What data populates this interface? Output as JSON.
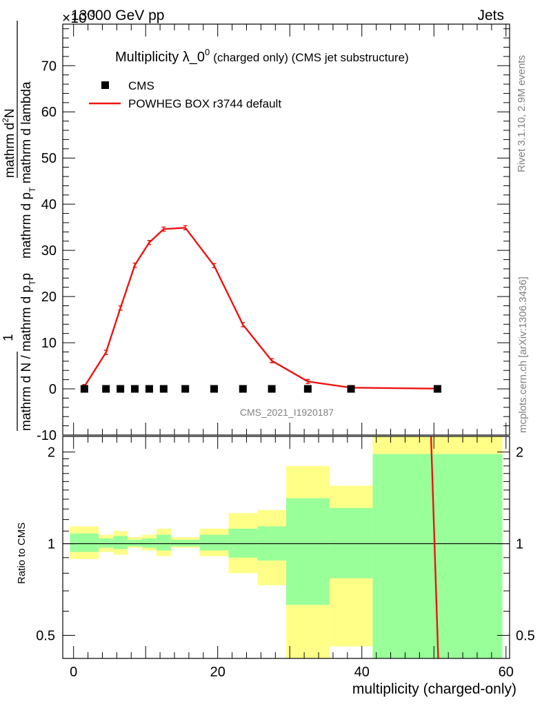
{
  "header": {
    "left": "13000 GeV pp",
    "right": "Jets",
    "exponent": "×10",
    "exponent_power": "-3"
  },
  "side_texts": {
    "rivet": "Rivet 3.1.10,  2.9M events",
    "mcplots": "mcplots.cern.ch [arXiv:1306.3436]"
  },
  "main_ylabel": {
    "numerator_top": "mathrm d",
    "numerator_sup": "2",
    "numerator_rest": "N",
    "denominator_1": "mathrm d p",
    "denominator_1_sub": "T",
    "denominator_2": " mathrm d lambda",
    "outer_one": "1",
    "outer_den_a": "mathrm d N / mathrm d p",
    "outer_den_a_sub": "T",
    "outer_den_b": "p"
  },
  "ratio_ylabel": "Ratio to CMS",
  "xlabel": "multiplicity (charged-only)",
  "watermark": "CMS_2021_I1920187",
  "chart_data": [
    {
      "type": "line",
      "title": "Multiplicity λ_0",
      "title_sup": "0",
      "subtitle": "(charged only) (CMS jet substructure)",
      "xlim": [
        -1.5,
        60.5
      ],
      "ylim": [
        -10,
        79
      ],
      "yticks": [
        -10,
        0,
        10,
        20,
        30,
        40,
        50,
        60,
        70
      ],
      "legend_position": "top-left",
      "legend": [
        "CMS",
        "POWHEG BOX r3744 default"
      ],
      "series": [
        {
          "name": "CMS",
          "style": "markers",
          "color": "#000000",
          "x": [
            1.5,
            4.5,
            6.5,
            8.5,
            10.5,
            12.5,
            15.5,
            19.5,
            23.5,
            27.5,
            32.5,
            38.5,
            50.5
          ],
          "values": [
            0,
            0,
            0,
            0,
            0,
            0,
            0,
            0,
            0,
            0,
            0,
            0,
            0
          ]
        },
        {
          "name": "POWHEG BOX r3744 default",
          "style": "line",
          "color": "#ee1111",
          "x": [
            1.5,
            4.5,
            6.5,
            8.5,
            10.5,
            12.5,
            15.5,
            19.5,
            23.5,
            27.5,
            32.5,
            38.5,
            50.5
          ],
          "values": [
            0.5,
            7.9,
            17.5,
            26.8,
            31.7,
            34.6,
            34.9,
            26.7,
            13.9,
            6.1,
            1.6,
            0.25,
            0.05
          ]
        }
      ]
    },
    {
      "type": "area",
      "title": "Ratio to CMS",
      "xlabel": "multiplicity (charged-only)",
      "xlim": [
        -1.5,
        60.5
      ],
      "xticks": [
        0,
        20,
        40,
        60
      ],
      "ylim": [
        0.42,
        2.25
      ],
      "yscale": "log",
      "yticks": [
        0.5,
        1,
        2
      ],
      "bins": [
        {
          "lo": -0.5,
          "hi": 3.5,
          "inner": [
            0.94,
            1.08
          ],
          "outer": [
            0.89,
            1.14
          ]
        },
        {
          "lo": 3.5,
          "hi": 5.5,
          "inner": [
            0.97,
            1.04
          ],
          "outer": [
            0.94,
            1.07
          ]
        },
        {
          "lo": 5.5,
          "hi": 7.5,
          "inner": [
            0.96,
            1.06
          ],
          "outer": [
            0.92,
            1.1
          ]
        },
        {
          "lo": 7.5,
          "hi": 9.5,
          "inner": [
            0.98,
            1.03
          ],
          "outer": [
            0.97,
            1.05
          ]
        },
        {
          "lo": 9.5,
          "hi": 11.5,
          "inner": [
            0.97,
            1.04
          ],
          "outer": [
            0.95,
            1.07
          ]
        },
        {
          "lo": 11.5,
          "hi": 13.5,
          "inner": [
            0.95,
            1.07
          ],
          "outer": [
            0.91,
            1.12
          ]
        },
        {
          "lo": 13.5,
          "hi": 17.5,
          "inner": [
            0.98,
            1.03
          ],
          "outer": [
            0.97,
            1.05
          ]
        },
        {
          "lo": 17.5,
          "hi": 21.5,
          "inner": [
            0.95,
            1.07
          ],
          "outer": [
            0.91,
            1.12
          ]
        },
        {
          "lo": 21.5,
          "hi": 25.5,
          "inner": [
            0.9,
            1.12
          ],
          "outer": [
            0.8,
            1.26
          ]
        },
        {
          "lo": 25.5,
          "hi": 29.5,
          "inner": [
            0.88,
            1.14
          ],
          "outer": [
            0.73,
            1.29
          ]
        },
        {
          "lo": 29.5,
          "hi": 35.5,
          "inner": [
            0.63,
            1.41
          ],
          "outer": [
            0.42,
            1.8
          ]
        },
        {
          "lo": 35.5,
          "hi": 41.5,
          "inner": [
            0.77,
            1.31
          ],
          "outer": [
            0.46,
            1.55
          ]
        },
        {
          "lo": 41.5,
          "hi": 59.5,
          "inner": [
            0.42,
            1.97
          ],
          "outer": [
            0.42,
            2.25
          ]
        }
      ],
      "series": [
        {
          "name": "POWHEG BOX r3744 default",
          "color": "#ee1111",
          "x": [
            49.6,
            50.6
          ],
          "values": [
            2.25,
            0.42
          ]
        }
      ]
    }
  ]
}
